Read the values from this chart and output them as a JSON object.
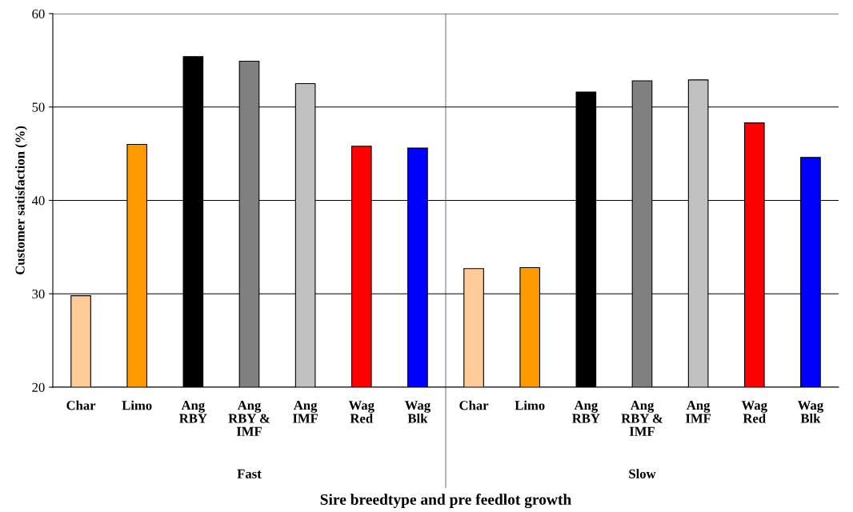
{
  "chart_data": {
    "type": "bar",
    "xlabel": "Sire breedtype and pre feedlot growth",
    "ylabel": "Customer satisfaction (%)",
    "categories": [
      "Char",
      "Limo",
      "Ang\nRBY",
      "Ang\nRBY &\nIMF",
      "Ang\nIMF",
      "Wag\nRed",
      "Wag\nBlk",
      "Char",
      "Limo",
      "Ang\nRBY",
      "Ang\nRBY &\nIMF",
      "Ang\nIMF",
      "Wag\nRed",
      "Wag\nBlk"
    ],
    "values": [
      29.8,
      46.0,
      55.4,
      54.9,
      52.5,
      45.8,
      45.6,
      32.7,
      32.8,
      51.6,
      52.8,
      52.9,
      48.3,
      44.6
    ],
    "colors": [
      "#ffcc99",
      "#ff9900",
      "#000000",
      "#808080",
      "#c0c0c0",
      "#ff0000",
      "#0000ff",
      "#ffcc99",
      "#ff9900",
      "#000000",
      "#808080",
      "#c0c0c0",
      "#ff0000",
      "#0000ff"
    ],
    "ylim": [
      20,
      60
    ],
    "yticks": [
      20,
      30,
      40,
      50,
      60
    ],
    "grid": "y",
    "legend": false,
    "annotations": [
      "Fast",
      "Slow"
    ]
  }
}
